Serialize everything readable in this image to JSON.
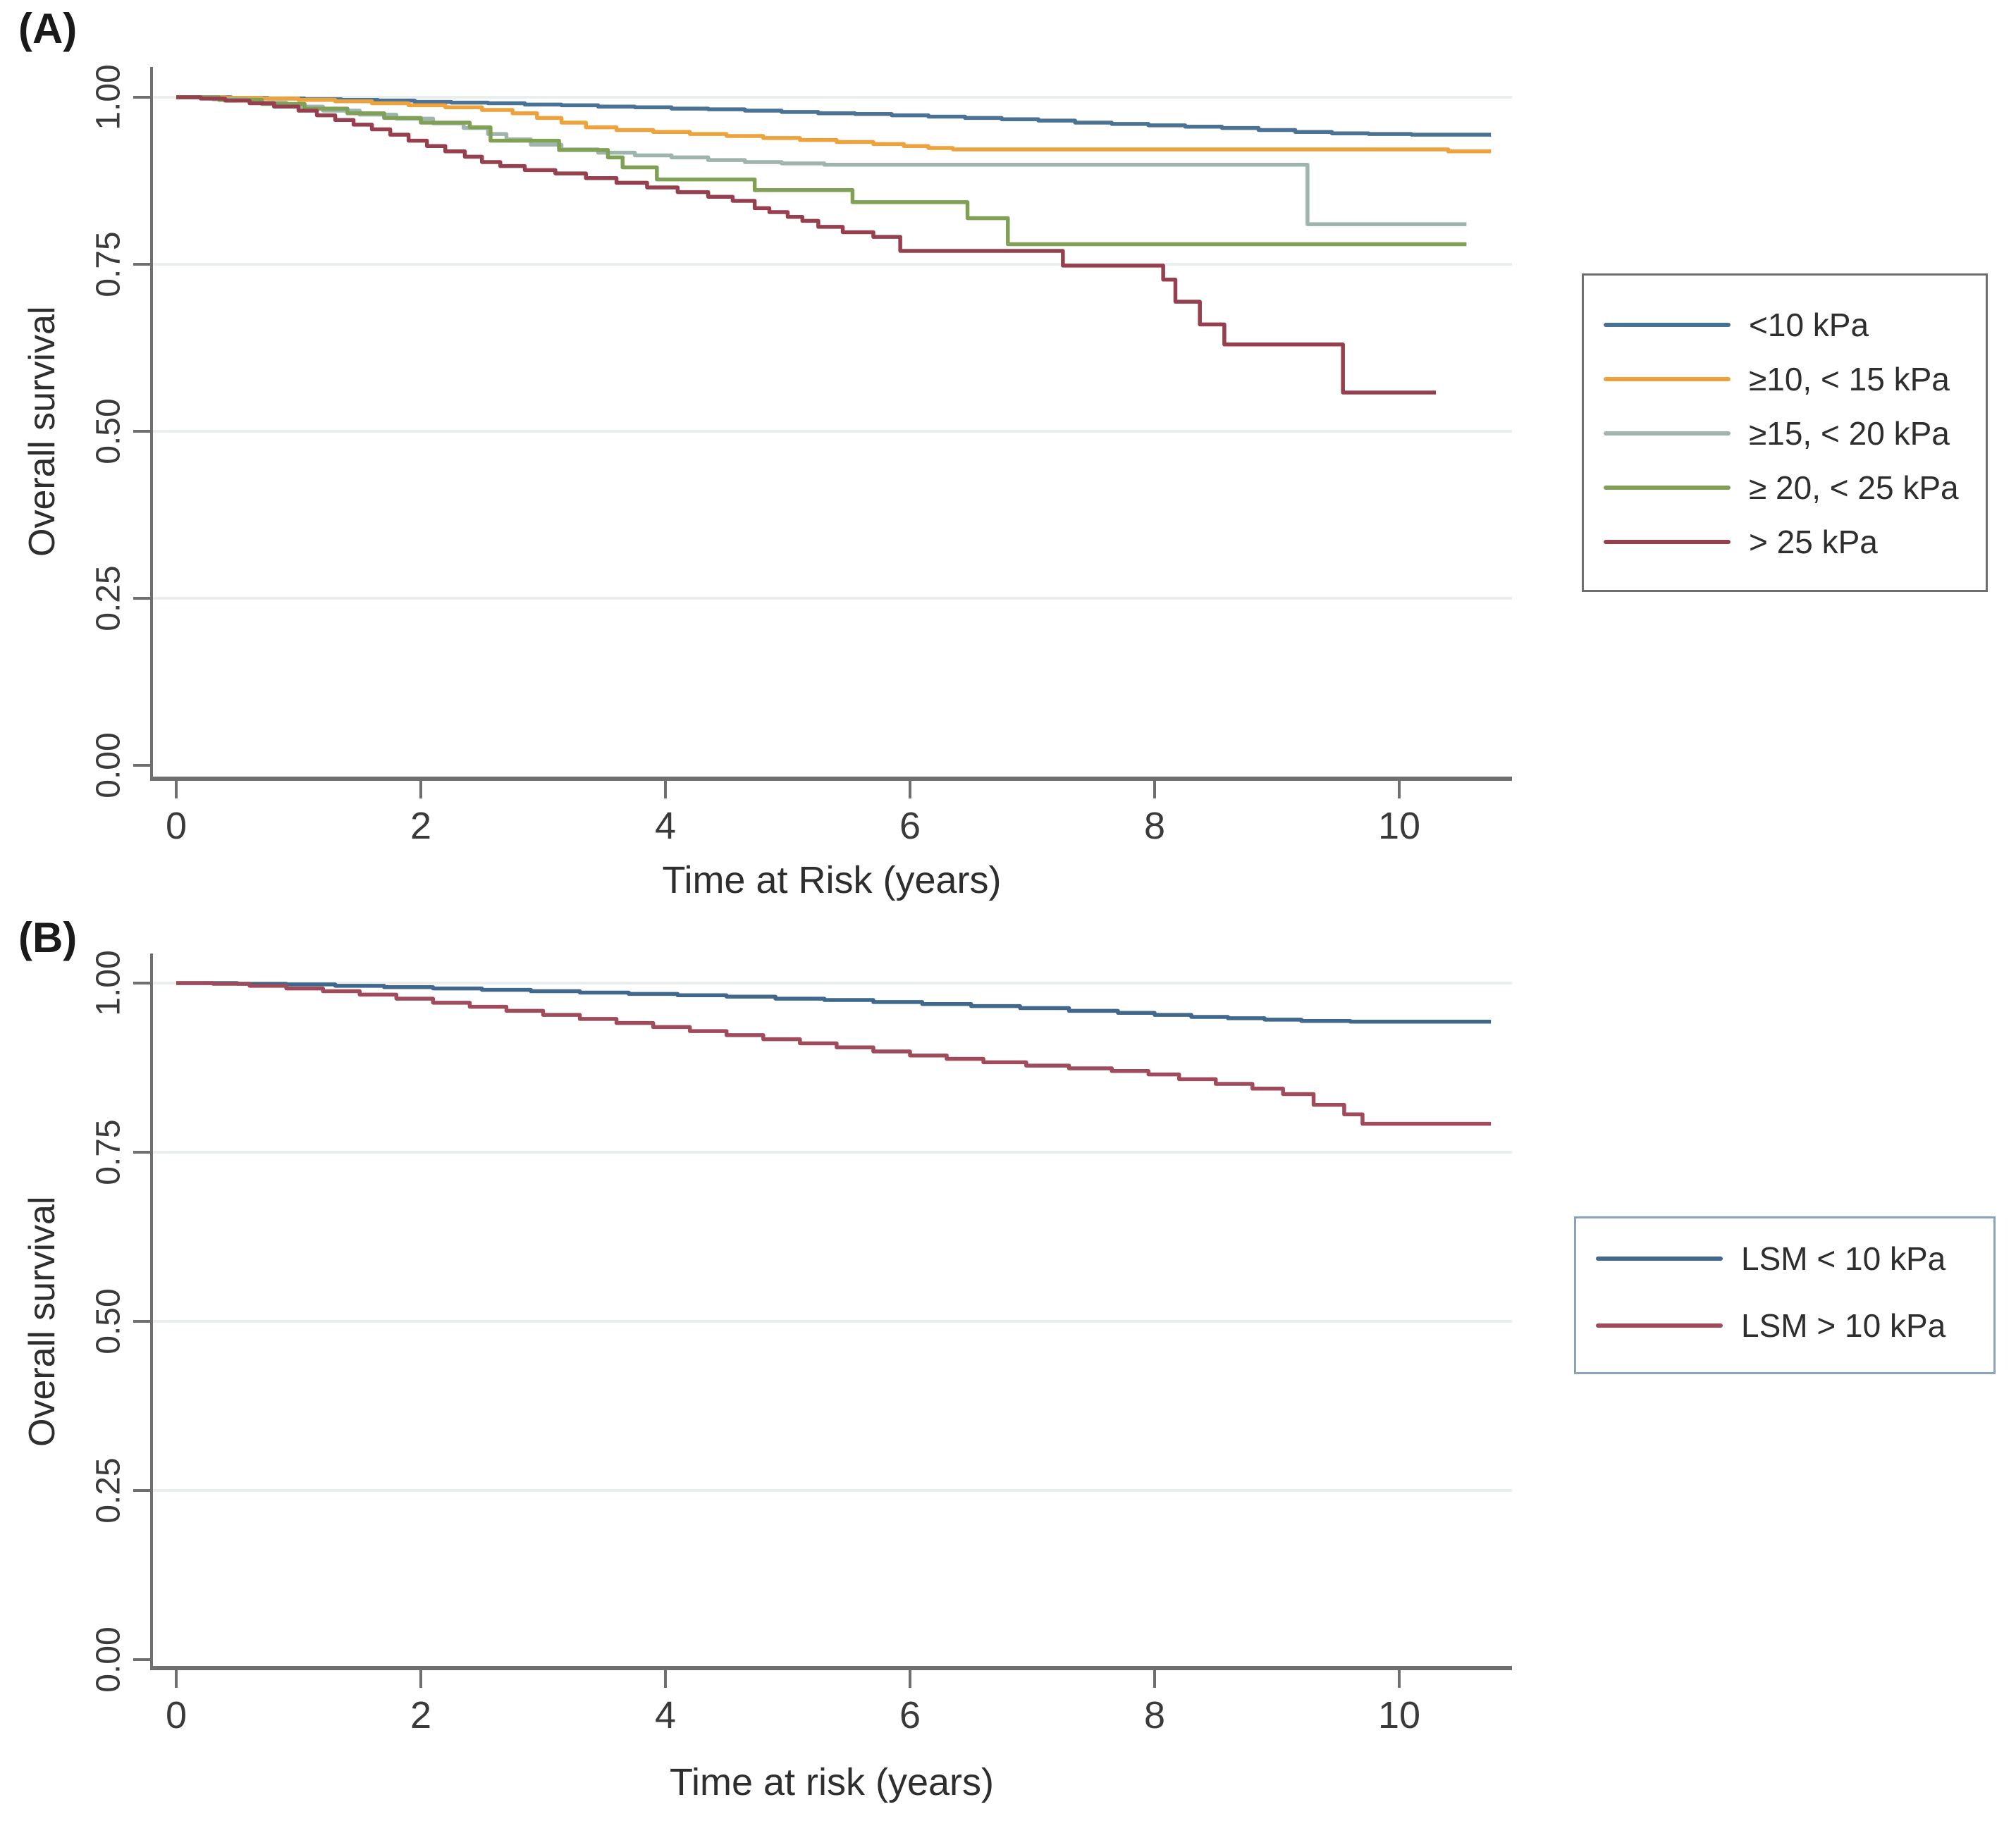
{
  "figure": {
    "background": "#ffffff",
    "axis_color": "#6f6f6f",
    "grid_color": "#eaeeee",
    "tick_label_color": "#3a3a3a"
  },
  "chart_data": [
    {
      "type": "line",
      "subtype": "kaplan-meier-step",
      "panel_label": "(A)",
      "xlabel": "Time at Risk (years)",
      "ylabel": "Overall survival",
      "xlim": [
        0,
        11
      ],
      "ylim": [
        0,
        1.02
      ],
      "x_ticks": [
        0,
        2,
        4,
        6,
        8,
        10
      ],
      "y_ticks": [
        1.0,
        0.75,
        0.5,
        0.25,
        0.0
      ],
      "y_tick_labels": [
        "1.00",
        "0.75",
        "0.50",
        "0.25",
        "0.00"
      ],
      "grid": "horizontal",
      "legend_position": "outside-right",
      "legend_border_color": "#6e6e6e",
      "series": [
        {
          "name": "<10 kPa",
          "color": "#4a7295",
          "points": [
            [
              0,
              1
            ],
            [
              0.45,
              0.999
            ],
            [
              0.75,
              0.998
            ],
            [
              1.05,
              0.997
            ],
            [
              1.35,
              0.996
            ],
            [
              1.65,
              0.995
            ],
            [
              1.95,
              0.993
            ],
            [
              2.25,
              0.992
            ],
            [
              2.55,
              0.991
            ],
            [
              2.85,
              0.989
            ],
            [
              3.15,
              0.988
            ],
            [
              3.45,
              0.986
            ],
            [
              3.75,
              0.985
            ],
            [
              4.05,
              0.983
            ],
            [
              4.35,
              0.982
            ],
            [
              4.65,
              0.98
            ],
            [
              4.95,
              0.978
            ],
            [
              5.25,
              0.976
            ],
            [
              5.55,
              0.975
            ],
            [
              5.85,
              0.973
            ],
            [
              6.15,
              0.971
            ],
            [
              6.45,
              0.969
            ],
            [
              6.75,
              0.967
            ],
            [
              7.05,
              0.965
            ],
            [
              7.35,
              0.962
            ],
            [
              7.65,
              0.96
            ],
            [
              7.95,
              0.958
            ],
            [
              8.25,
              0.956
            ],
            [
              8.55,
              0.954
            ],
            [
              8.85,
              0.951
            ],
            [
              9.15,
              0.948
            ],
            [
              9.45,
              0.946
            ],
            [
              9.75,
              0.945
            ],
            [
              10.1,
              0.944
            ],
            [
              10.75,
              0.944
            ]
          ]
        },
        {
          "name": "≥10, < 15 kPa",
          "color": "#eda23c",
          "points": [
            [
              0,
              1
            ],
            [
              0.4,
              0.999
            ],
            [
              0.7,
              0.998
            ],
            [
              1.0,
              0.996
            ],
            [
              1.3,
              0.994
            ],
            [
              1.6,
              0.991
            ],
            [
              1.9,
              0.988
            ],
            [
              2.2,
              0.985
            ],
            [
              2.5,
              0.981
            ],
            [
              2.75,
              0.976
            ],
            [
              2.95,
              0.969
            ],
            [
              3.15,
              0.962
            ],
            [
              3.35,
              0.955
            ],
            [
              3.6,
              0.951
            ],
            [
              3.9,
              0.948
            ],
            [
              4.2,
              0.945
            ],
            [
              4.5,
              0.942
            ],
            [
              4.8,
              0.939
            ],
            [
              5.1,
              0.936
            ],
            [
              5.4,
              0.933
            ],
            [
              5.7,
              0.93
            ],
            [
              5.95,
              0.927
            ],
            [
              6.15,
              0.924
            ],
            [
              6.35,
              0.922
            ],
            [
              10.4,
              0.919
            ],
            [
              10.75,
              0.919
            ]
          ]
        },
        {
          "name": "≥15, < 20 kPa",
          "color": "#9fb5ac",
          "points": [
            [
              0,
              1
            ],
            [
              0.3,
              0.997
            ],
            [
              0.6,
              0.992
            ],
            [
              0.9,
              0.986
            ],
            [
              1.2,
              0.98
            ],
            [
              1.5,
              0.974
            ],
            [
              1.8,
              0.968
            ],
            [
              2.1,
              0.961
            ],
            [
              2.35,
              0.954
            ],
            [
              2.55,
              0.945
            ],
            [
              2.7,
              0.937
            ],
            [
              2.9,
              0.929
            ],
            [
              3.15,
              0.922
            ],
            [
              3.45,
              0.917
            ],
            [
              3.75,
              0.913
            ],
            [
              4.05,
              0.91
            ],
            [
              4.35,
              0.906
            ],
            [
              4.65,
              0.903
            ],
            [
              4.95,
              0.901
            ],
            [
              5.3,
              0.899
            ],
            [
              9.25,
              0.81
            ],
            [
              10.55,
              0.81
            ]
          ]
        },
        {
          "name": "≥ 20, < 25 kPa",
          "color": "#7fa055",
          "points": [
            [
              0,
              1
            ],
            [
              0.35,
              0.996
            ],
            [
              0.7,
              0.99
            ],
            [
              1.05,
              0.983
            ],
            [
              1.4,
              0.976
            ],
            [
              1.7,
              0.969
            ],
            [
              2.0,
              0.962
            ],
            [
              2.4,
              0.955
            ],
            [
              2.57,
              0.935
            ],
            [
              3.13,
              0.921
            ],
            [
              3.53,
              0.91
            ],
            [
              3.65,
              0.895
            ],
            [
              3.93,
              0.877
            ],
            [
              4.73,
              0.861
            ],
            [
              5.53,
              0.843
            ],
            [
              6.47,
              0.819
            ],
            [
              6.8,
              0.78
            ],
            [
              10.55,
              0.78
            ]
          ]
        },
        {
          "name": "> 25 kPa",
          "color": "#96404f",
          "points": [
            [
              0,
              1
            ],
            [
              0.2,
              0.998
            ],
            [
              0.4,
              0.995
            ],
            [
              0.6,
              0.991
            ],
            [
              0.8,
              0.986
            ],
            [
              1.0,
              0.98
            ],
            [
              1.15,
              0.973
            ],
            [
              1.3,
              0.966
            ],
            [
              1.45,
              0.959
            ],
            [
              1.6,
              0.952
            ],
            [
              1.75,
              0.944
            ],
            [
              1.9,
              0.935
            ],
            [
              2.05,
              0.927
            ],
            [
              2.2,
              0.919
            ],
            [
              2.36,
              0.911
            ],
            [
              2.5,
              0.903
            ],
            [
              2.65,
              0.897
            ],
            [
              2.85,
              0.891
            ],
            [
              3.1,
              0.886
            ],
            [
              3.35,
              0.879
            ],
            [
              3.6,
              0.872
            ],
            [
              3.85,
              0.865
            ],
            [
              4.1,
              0.858
            ],
            [
              4.35,
              0.851
            ],
            [
              4.55,
              0.845
            ],
            [
              4.73,
              0.834
            ],
            [
              4.85,
              0.828
            ],
            [
              5.0,
              0.821
            ],
            [
              5.12,
              0.815
            ],
            [
              5.25,
              0.806
            ],
            [
              5.45,
              0.798
            ],
            [
              5.7,
              0.791
            ],
            [
              5.92,
              0.77
            ],
            [
              7.25,
              0.748
            ],
            [
              8.07,
              0.727
            ],
            [
              8.17,
              0.694
            ],
            [
              8.37,
              0.66
            ],
            [
              8.57,
              0.63
            ],
            [
              9.54,
              0.558
            ],
            [
              10.3,
              0.558
            ]
          ]
        }
      ]
    },
    {
      "type": "line",
      "subtype": "kaplan-meier-step",
      "panel_label": "(B)",
      "xlabel": "Time at risk (years)",
      "ylabel": "Overall survival",
      "xlim": [
        0,
        11
      ],
      "ylim": [
        0,
        1.02
      ],
      "x_ticks": [
        0,
        2,
        4,
        6,
        8,
        10
      ],
      "y_ticks": [
        1.0,
        0.75,
        0.5,
        0.25,
        0.0
      ],
      "y_tick_labels": [
        "1.00",
        "0.75",
        "0.50",
        "0.25",
        "0.00"
      ],
      "grid": "horizontal",
      "legend_position": "outside-right",
      "legend_border_color": "#8ba3bf",
      "series": [
        {
          "name": "LSM < 10 kPa",
          "color": "#3f688c",
          "points": [
            [
              0,
              1
            ],
            [
              0.5,
              0.999
            ],
            [
              0.9,
              0.998
            ],
            [
              1.3,
              0.996
            ],
            [
              1.7,
              0.994
            ],
            [
              2.1,
              0.992
            ],
            [
              2.5,
              0.99
            ],
            [
              2.9,
              0.988
            ],
            [
              3.3,
              0.986
            ],
            [
              3.7,
              0.984
            ],
            [
              4.1,
              0.982
            ],
            [
              4.5,
              0.98
            ],
            [
              4.9,
              0.977
            ],
            [
              5.3,
              0.975
            ],
            [
              5.7,
              0.972
            ],
            [
              6.1,
              0.969
            ],
            [
              6.5,
              0.966
            ],
            [
              6.9,
              0.963
            ],
            [
              7.3,
              0.959
            ],
            [
              7.7,
              0.956
            ],
            [
              8.0,
              0.953
            ],
            [
              8.3,
              0.95
            ],
            [
              8.6,
              0.948
            ],
            [
              8.9,
              0.946
            ],
            [
              9.2,
              0.944
            ],
            [
              9.6,
              0.943
            ],
            [
              10.75,
              0.943
            ]
          ]
        },
        {
          "name": "LSM > 10 kPa",
          "color": "#a04b5c",
          "points": [
            [
              0,
              1
            ],
            [
              0.3,
              0.999
            ],
            [
              0.6,
              0.996
            ],
            [
              0.9,
              0.992
            ],
            [
              1.2,
              0.988
            ],
            [
              1.5,
              0.983
            ],
            [
              1.8,
              0.977
            ],
            [
              2.1,
              0.971
            ],
            [
              2.4,
              0.965
            ],
            [
              2.7,
              0.959
            ],
            [
              3.0,
              0.953
            ],
            [
              3.3,
              0.947
            ],
            [
              3.6,
              0.941
            ],
            [
              3.9,
              0.935
            ],
            [
              4.2,
              0.929
            ],
            [
              4.5,
              0.923
            ],
            [
              4.8,
              0.917
            ],
            [
              5.1,
              0.911
            ],
            [
              5.4,
              0.905
            ],
            [
              5.7,
              0.899
            ],
            [
              6.0,
              0.893
            ],
            [
              6.3,
              0.888
            ],
            [
              6.6,
              0.883
            ],
            [
              6.95,
              0.878
            ],
            [
              7.3,
              0.874
            ],
            [
              7.65,
              0.87
            ],
            [
              7.95,
              0.865
            ],
            [
              8.2,
              0.858
            ],
            [
              8.5,
              0.851
            ],
            [
              8.8,
              0.844
            ],
            [
              9.05,
              0.836
            ],
            [
              9.3,
              0.82
            ],
            [
              9.55,
              0.806
            ],
            [
              9.7,
              0.792
            ],
            [
              10.75,
              0.792
            ]
          ]
        }
      ]
    }
  ]
}
